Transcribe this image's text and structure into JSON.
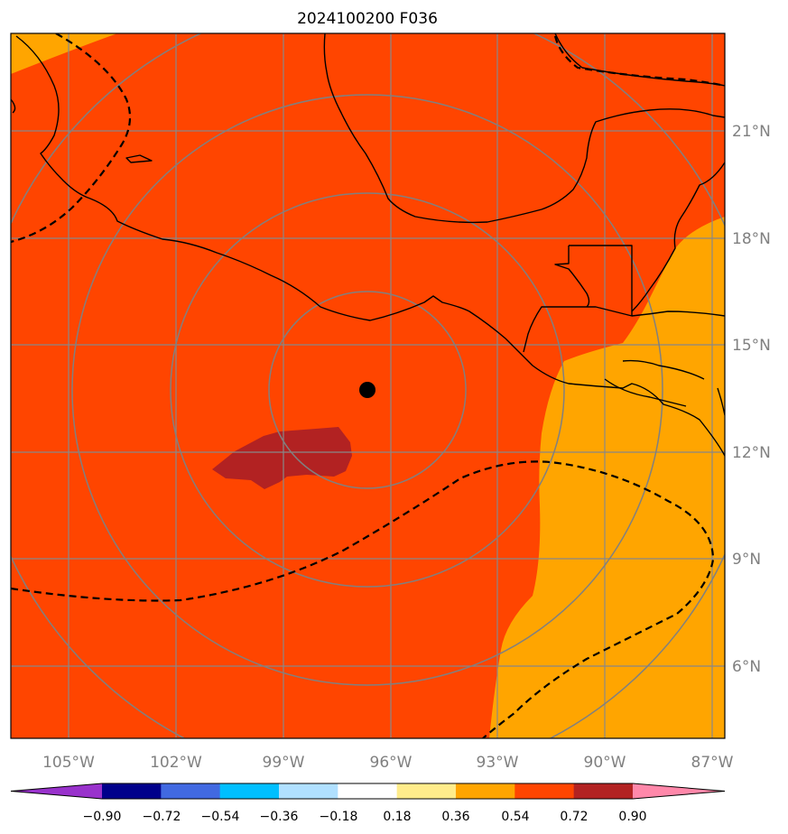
{
  "title": "2024100200 F036",
  "map": {
    "longitude_labels": [
      "105°W",
      "102°W",
      "99°W",
      "96°W",
      "93°W",
      "90°W",
      "87°W"
    ],
    "latitude_labels": [
      "21°N",
      "18°N",
      "15°N",
      "12°N",
      "9°N",
      "6°N"
    ],
    "contour_style": "dashed black",
    "range_rings": 4,
    "center_marker": "black-dot",
    "fill_colors": {
      "dominant": "#ff4500",
      "east_lower": "#ffa500",
      "high_patch": "#b22222"
    }
  },
  "colorbar": {
    "colors": [
      "#9932cc",
      "#00008b",
      "#4169e1",
      "#00bfff",
      "#b0e0ff",
      "#ffffff",
      "#ffec8b",
      "#ffa500",
      "#ff4500",
      "#b22222",
      "#ff88aa"
    ],
    "tick_labels": [
      "−0.90",
      "−0.72",
      "−0.54",
      "−0.36",
      "−0.18",
      "0.18",
      "0.36",
      "0.54",
      "0.72",
      "0.90"
    ]
  }
}
